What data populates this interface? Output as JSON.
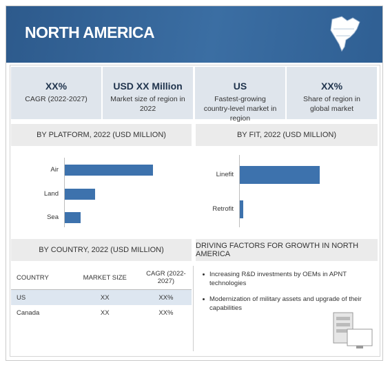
{
  "header": {
    "title": "NORTH AMERICA"
  },
  "kpis": [
    {
      "value": "XX%",
      "label": "CAGR (2022-2027)"
    },
    {
      "value": "USD XX Million",
      "label": "Market size of region in 2022"
    },
    {
      "value": "US",
      "label": "Fastest-growing country-level market in region"
    },
    {
      "value": "XX%",
      "label": "Share of region in global market"
    }
  ],
  "chart_data": [
    {
      "type": "bar",
      "orientation": "horizontal",
      "title": "BY PLATFORM, 2022 (USD MILLION)",
      "categories": [
        "Air",
        "Land",
        "Sea"
      ],
      "values": [
        128,
        44,
        23
      ],
      "color": "#3d72ad",
      "xlim": [
        0,
        150
      ]
    },
    {
      "type": "bar",
      "orientation": "horizontal",
      "title": "BY FIT, 2022 (USD MILLION)",
      "categories": [
        "Linefit",
        "Retrofit"
      ],
      "values": [
        116,
        5
      ],
      "color": "#3d72ad",
      "xlim": [
        0,
        150
      ]
    }
  ],
  "table": {
    "title": "BY COUNTRY, 2022 (USD MILLION)",
    "columns": [
      "COUNTRY",
      "MARKET SIZE",
      "CAGR (2022-2027)"
    ],
    "rows": [
      [
        "US",
        "XX",
        "XX%"
      ],
      [
        "Canada",
        "XX",
        "XX%"
      ]
    ]
  },
  "factors": {
    "title": "DRIVING FACTORS FOR GROWTH IN NORTH AMERICA",
    "items": [
      "Increasing R&D investments by OEMs in APNT technologies",
      "Modernization of military assets and upgrade of their capabilities"
    ]
  }
}
